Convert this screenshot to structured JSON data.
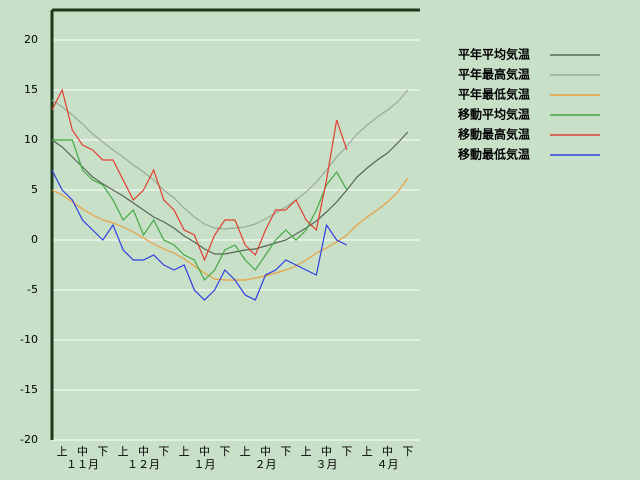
{
  "chart_data": {
    "type": "line",
    "x": [
      0,
      1,
      2,
      3,
      4,
      5,
      6,
      7,
      8,
      9,
      10,
      11,
      12,
      13,
      14,
      15,
      16,
      17,
      18,
      19,
      20,
      21,
      22,
      23,
      24,
      25,
      26,
      27,
      28,
      29,
      30,
      31,
      32,
      33,
      34,
      35
    ],
    "xlim": [
      0,
      36
    ],
    "xticks": [
      {
        "value": 1,
        "label": "上"
      },
      {
        "value": 3,
        "label": "中"
      },
      {
        "value": 5,
        "label": "下"
      },
      {
        "value": 7,
        "label": "上"
      },
      {
        "value": 9,
        "label": "中"
      },
      {
        "value": 11,
        "label": "下"
      },
      {
        "value": 13,
        "label": "上"
      },
      {
        "value": 15,
        "label": "中"
      },
      {
        "value": 17,
        "label": "下"
      },
      {
        "value": 19,
        "label": "上"
      },
      {
        "value": 21,
        "label": "中"
      },
      {
        "value": 23,
        "label": "下"
      },
      {
        "value": 25,
        "label": "上"
      },
      {
        "value": 27,
        "label": "中"
      },
      {
        "value": 29,
        "label": "下"
      },
      {
        "value": 31,
        "label": "上"
      },
      {
        "value": 33,
        "label": "中"
      },
      {
        "value": 35,
        "label": "下"
      }
    ],
    "month_labels": [
      {
        "value": 3,
        "label": "１１月"
      },
      {
        "value": 9,
        "label": "１２月"
      },
      {
        "value": 15,
        "label": "１月"
      },
      {
        "value": 21,
        "label": "２月"
      },
      {
        "value": 27,
        "label": "３月"
      },
      {
        "value": 33,
        "label": "４月"
      }
    ],
    "ylim": [
      -20,
      20
    ],
    "yticks": [
      20,
      15,
      10,
      5,
      0,
      -5,
      -10,
      -15,
      -20
    ],
    "grid": true,
    "series": [
      {
        "name": "平年平均気温",
        "color": "#556655",
        "values": [
          10,
          9.3,
          8.3,
          7.3,
          6.3,
          5.6,
          5,
          4.4,
          3.7,
          3,
          2.3,
          1.8,
          1.2,
          0.4,
          -0.2,
          -0.9,
          -1.4,
          -1.4,
          -1.2,
          -1,
          -0.9,
          -0.6,
          -0.3,
          0,
          0.6,
          1.2,
          1.9,
          2.8,
          3.8,
          5,
          6.3,
          7.2,
          8,
          8.7,
          9.7,
          10.8
        ]
      },
      {
        "name": "平年最高気温",
        "color": "#99aa99",
        "values": [
          14,
          13.3,
          12.5,
          11.6,
          10.6,
          9.8,
          9,
          8.3,
          7.5,
          6.8,
          6,
          5,
          4.2,
          3.2,
          2.3,
          1.6,
          1.2,
          1.1,
          1.2,
          1.3,
          1.6,
          2.1,
          2.7,
          3.3,
          4,
          4.8,
          5.8,
          7,
          8.3,
          9.4,
          10.6,
          11.5,
          12.3,
          13,
          13.8,
          15
        ]
      },
      {
        "name": "平年最低気温",
        "color": "#e8a040",
        "values": [
          5,
          4.5,
          3.8,
          3.1,
          2.5,
          2,
          1.7,
          1.3,
          0.8,
          0.2,
          -0.4,
          -0.9,
          -1.3,
          -1.9,
          -2.6,
          -3.3,
          -3.9,
          -4,
          -4,
          -4,
          -3.8,
          -3.6,
          -3.3,
          -3,
          -2.6,
          -2,
          -1.3,
          -0.8,
          -0.2,
          0.5,
          1.5,
          2.3,
          3,
          3.8,
          4.8,
          6.2
        ]
      },
      {
        "name": "移動平均気温",
        "color": "#44aa44",
        "values": [
          10,
          10,
          10,
          7,
          6,
          5.5,
          4,
          2,
          3,
          0.5,
          2,
          0,
          -0.5,
          -1.5,
          -2,
          -4,
          -3,
          -1,
          -0.5,
          -2,
          -3,
          -1.5,
          0,
          1,
          0,
          1,
          3,
          5.5,
          6.8,
          5,
          null,
          null,
          null,
          null,
          null,
          null
        ]
      },
      {
        "name": "移動最高気温",
        "color": "#e04030",
        "values": [
          13,
          15,
          11,
          9.5,
          9,
          8,
          8,
          6,
          4,
          5,
          7,
          4,
          3,
          1,
          0.5,
          -2,
          0.5,
          2,
          2,
          -0.5,
          -1.5,
          1,
          3,
          3,
          4,
          2,
          1,
          6,
          12,
          9,
          null,
          null,
          null,
          null,
          null,
          null
        ]
      },
      {
        "name": "移動最低気温",
        "color": "#3040e0",
        "values": [
          7,
          5,
          4,
          2,
          1,
          0,
          1.5,
          -1,
          -2,
          -2,
          -1.5,
          -2.5,
          -3,
          -2.5,
          -5,
          -6,
          -5,
          -3,
          -4,
          -5.5,
          -6,
          -3.5,
          -3,
          -2,
          -2.5,
          -3,
          -3.5,
          1.5,
          0,
          -0.5,
          null,
          null,
          null,
          null,
          null,
          null
        ]
      }
    ]
  }
}
